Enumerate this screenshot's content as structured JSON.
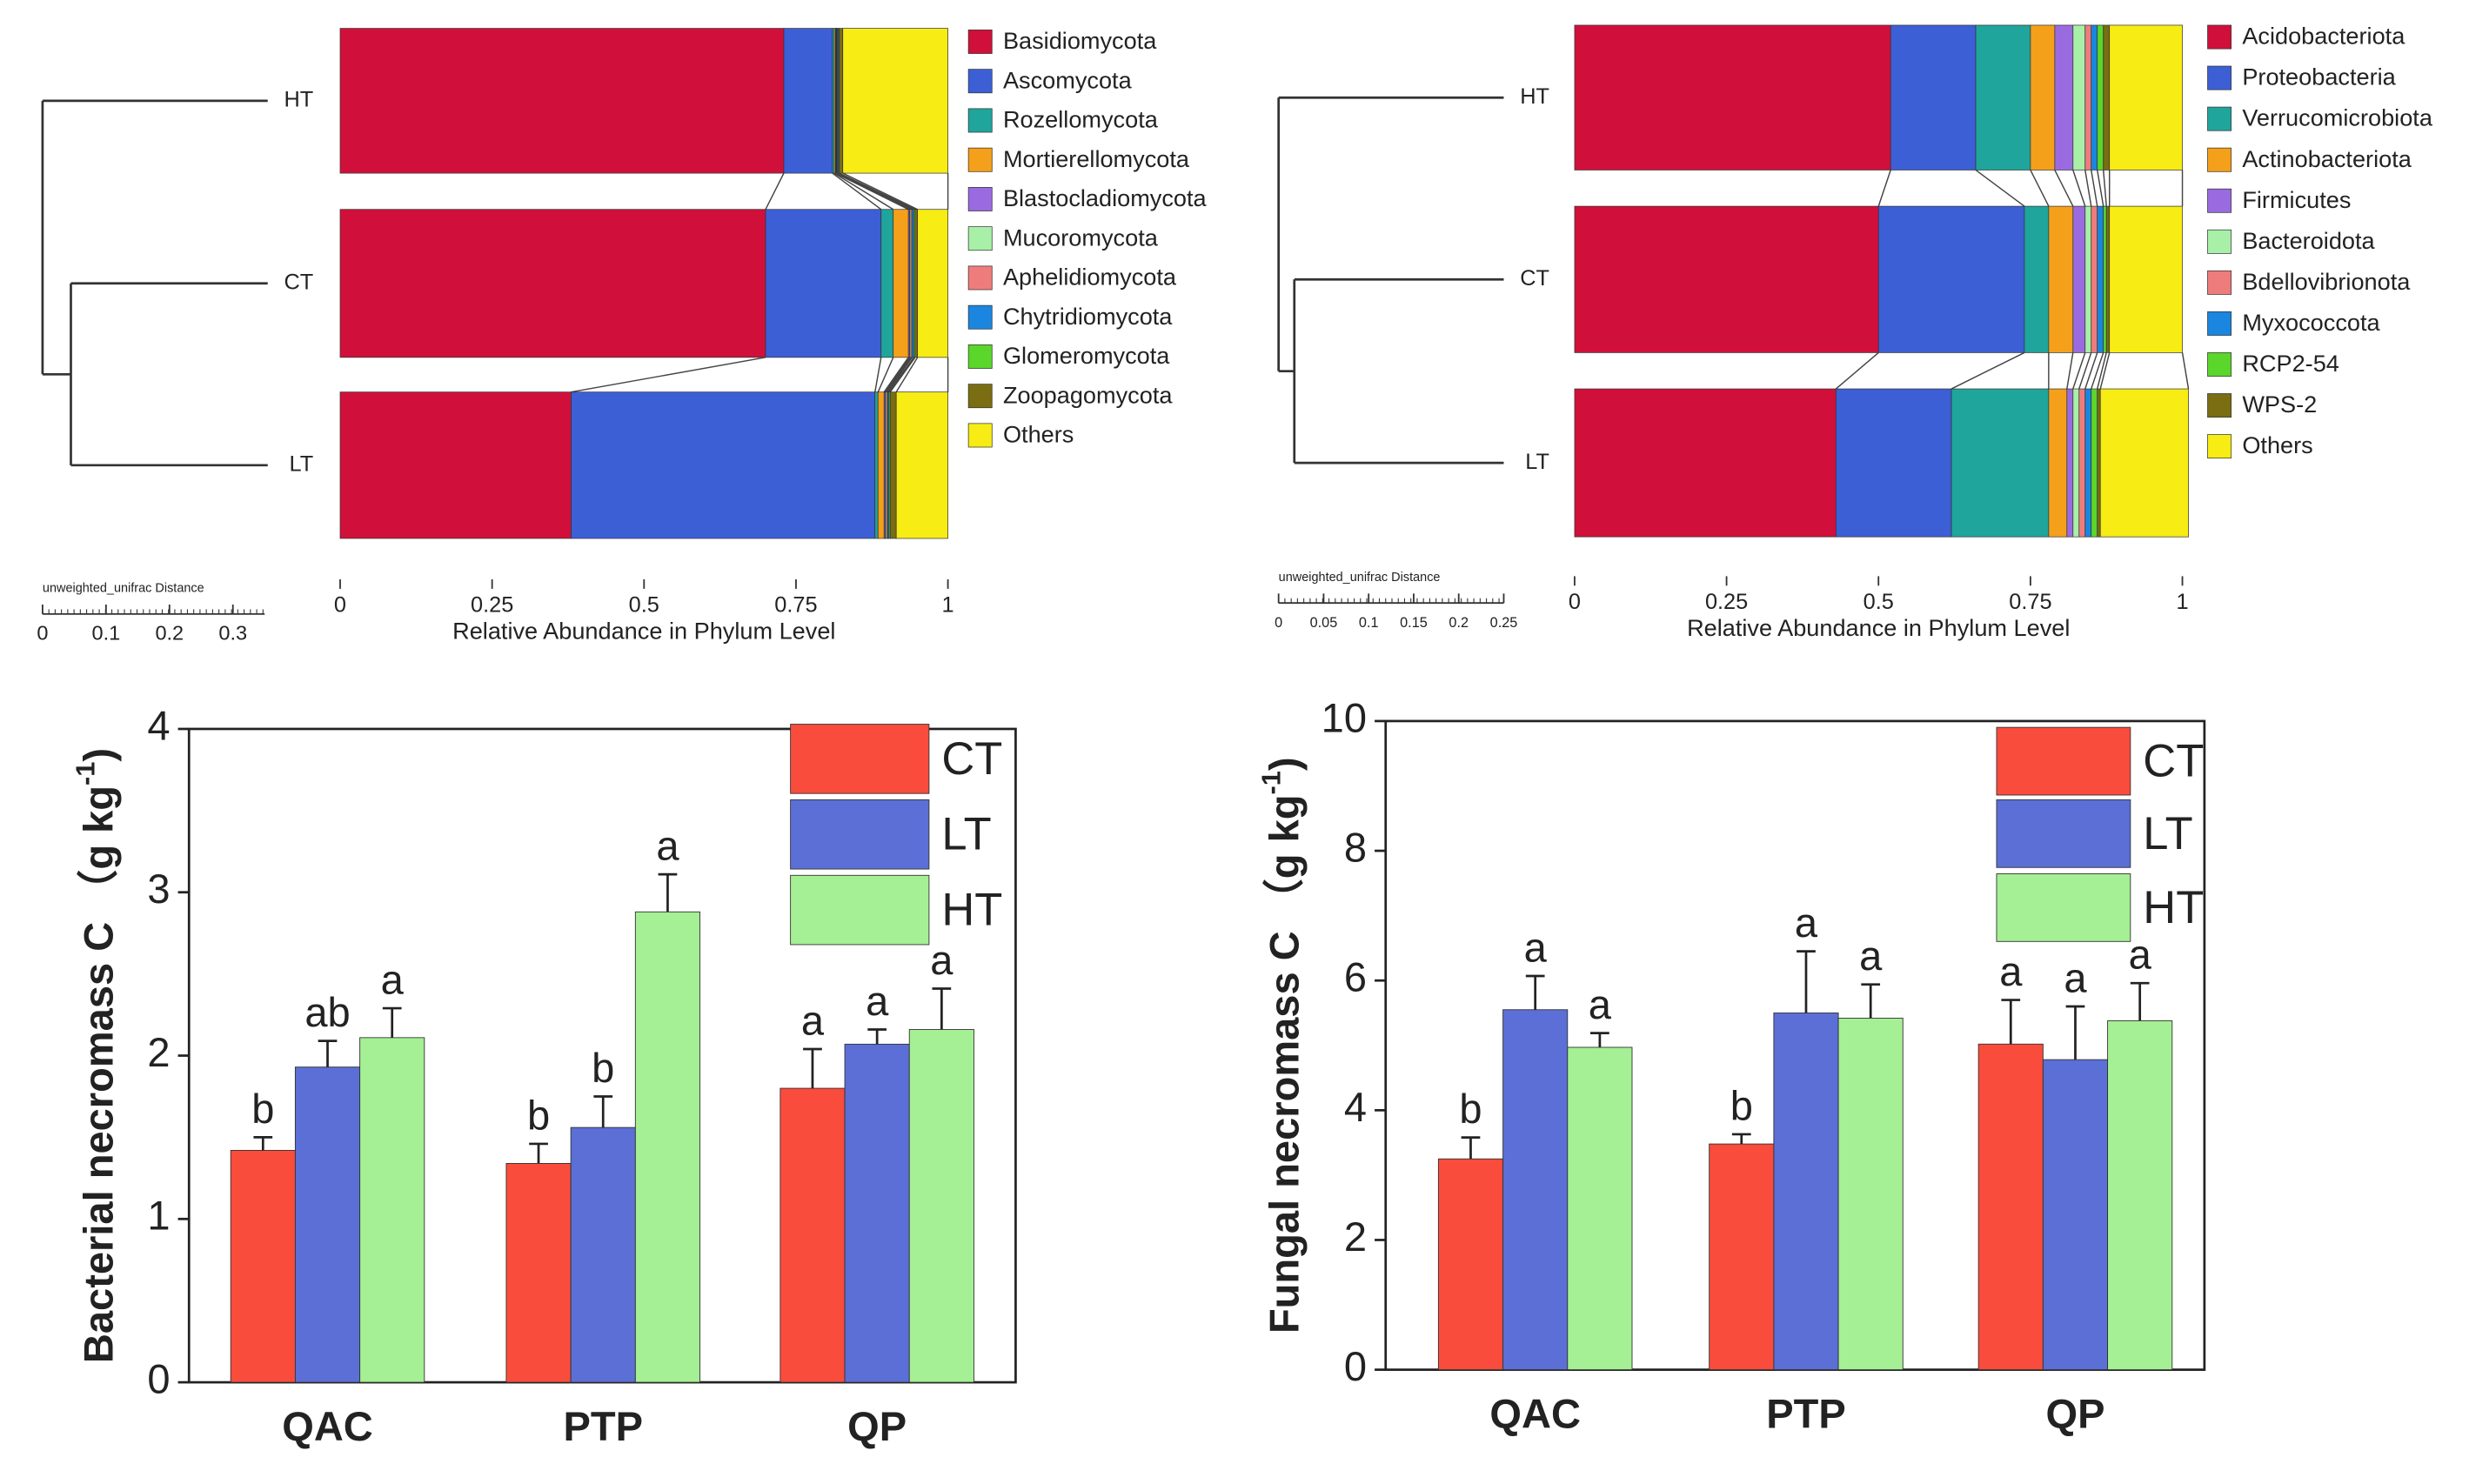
{
  "chart_data": [
    {
      "type": "stacked_bar",
      "orientation": "horizontal",
      "categories": [
        "HT",
        "CT",
        "LT"
      ],
      "xlim": [
        0,
        1
      ],
      "xticks": [
        0,
        0.25,
        0.5,
        0.75,
        1
      ],
      "xlabel": "Relative Abundance in Phylum Level",
      "dendrogram": {
        "label": "unweighted_unifrac Distance",
        "xlim": [
          0,
          0.35
        ],
        "xticks": [
          0,
          0.1,
          0.2,
          0.3
        ]
      },
      "series": [
        {
          "name": "Basidiomycota",
          "color": "#d0103a",
          "values": [
            0.73,
            0.7,
            0.38
          ]
        },
        {
          "name": "Ascomycota",
          "color": "#3c5fd6",
          "values": [
            0.08,
            0.19,
            0.5
          ]
        },
        {
          "name": "Rozellomycota",
          "color": "#1fa59c",
          "values": [
            0.003,
            0.02,
            0.005
          ]
        },
        {
          "name": "Mortierellomycota",
          "color": "#f5a01a",
          "values": [
            0.002,
            0.025,
            0.01
          ]
        },
        {
          "name": "Blastocladiomycota",
          "color": "#9a6be0",
          "values": [
            0.001,
            0.002,
            0.002
          ]
        },
        {
          "name": "Mucoromycota",
          "color": "#a8efa8",
          "values": [
            0.001,
            0.002,
            0.002
          ]
        },
        {
          "name": "Aphelidiomycota",
          "color": "#ef7c7c",
          "values": [
            0.001,
            0.002,
            0.002
          ]
        },
        {
          "name": "Chytridiomycota",
          "color": "#1a86e0",
          "values": [
            0.002,
            0.003,
            0.002
          ]
        },
        {
          "name": "Glomeromycota",
          "color": "#5bd62a",
          "values": [
            0.001,
            0.002,
            0.002
          ]
        },
        {
          "name": "Zoopagomycota",
          "color": "#7a6d12",
          "values": [
            0.006,
            0.004,
            0.01
          ]
        },
        {
          "name": "Others",
          "color": "#f7ec13",
          "values": [
            0.173,
            0.05,
            0.085
          ]
        }
      ]
    },
    {
      "type": "stacked_bar",
      "orientation": "horizontal",
      "categories": [
        "HT",
        "CT",
        "LT"
      ],
      "xlim": [
        0,
        1
      ],
      "xticks": [
        0,
        0.25,
        0.5,
        0.75,
        1
      ],
      "xlabel": "Relative Abundance in Phylum Level",
      "dendrogram": {
        "label": "unweighted_unifrac Distance",
        "xlim": [
          0,
          0.25
        ],
        "xticks": [
          0,
          0.05,
          0.1,
          0.15,
          0.2,
          0.25
        ]
      },
      "series": [
        {
          "name": "Acidobacteriota",
          "color": "#d0103a",
          "values": [
            0.52,
            0.5,
            0.43
          ]
        },
        {
          "name": "Proteobacteria",
          "color": "#3c5fd6",
          "values": [
            0.14,
            0.24,
            0.19
          ]
        },
        {
          "name": "Verrucomicrobiota",
          "color": "#1fa59c",
          "values": [
            0.09,
            0.04,
            0.16
          ]
        },
        {
          "name": "Actinobacteriota",
          "color": "#f5a01a",
          "values": [
            0.04,
            0.04,
            0.03
          ]
        },
        {
          "name": "Firmicutes",
          "color": "#9a6be0",
          "values": [
            0.03,
            0.02,
            0.01
          ]
        },
        {
          "name": "Bacteroidota",
          "color": "#a8efa8",
          "values": [
            0.02,
            0.01,
            0.01
          ]
        },
        {
          "name": "Bdellovibrionota",
          "color": "#ef7c7c",
          "values": [
            0.01,
            0.01,
            0.01
          ]
        },
        {
          "name": "Myxococcota",
          "color": "#1a86e0",
          "values": [
            0.01,
            0.01,
            0.01
          ]
        },
        {
          "name": "RCP2-54",
          "color": "#5bd62a",
          "values": [
            0.01,
            0.005,
            0.01
          ]
        },
        {
          "name": "WPS-2",
          "color": "#7a6d12",
          "values": [
            0.01,
            0.005,
            0.005
          ]
        },
        {
          "name": "Others",
          "color": "#f7ec13",
          "values": [
            0.12,
            0.12,
            0.145
          ]
        }
      ]
    },
    {
      "type": "bar",
      "ylabel": "Bacterial necromass C （g kg",
      "ylabel_sup": "-1",
      "ylabel_end": ")",
      "categories": [
        "QAC",
        "PTP",
        "QP"
      ],
      "ylim": [
        0,
        4
      ],
      "yticks": [
        0,
        1,
        2,
        3,
        4
      ],
      "series": [
        {
          "name": "CT",
          "color": "#f94c3c",
          "values": [
            1.42,
            1.34,
            1.8
          ],
          "errors": [
            0.08,
            0.12,
            0.24
          ],
          "letters": [
            "b",
            "b",
            "a"
          ]
        },
        {
          "name": "LT",
          "color": "#5b6fd6",
          "values": [
            1.93,
            1.56,
            2.07
          ],
          "errors": [
            0.16,
            0.19,
            0.09
          ],
          "letters": [
            "ab",
            "b",
            "a"
          ]
        },
        {
          "name": "HT",
          "color": "#a5ef94",
          "values": [
            2.11,
            2.88,
            2.16
          ],
          "errors": [
            0.18,
            0.23,
            0.25
          ],
          "letters": [
            "a",
            "a",
            "a"
          ]
        }
      ]
    },
    {
      "type": "bar",
      "ylabel": "Fungal necromass C （g kg",
      "ylabel_sup": "-1",
      "ylabel_end": ")",
      "categories": [
        "QAC",
        "PTP",
        "QP"
      ],
      "ylim": [
        0,
        10
      ],
      "yticks": [
        0,
        2,
        4,
        6,
        8,
        10
      ],
      "series": [
        {
          "name": "CT",
          "color": "#f94c3c",
          "values": [
            3.25,
            3.48,
            5.02
          ],
          "errors": [
            0.33,
            0.15,
            0.68
          ],
          "letters": [
            "b",
            "b",
            "a"
          ]
        },
        {
          "name": "LT",
          "color": "#5b6fd6",
          "values": [
            5.55,
            5.5,
            4.78
          ],
          "errors": [
            0.52,
            0.95,
            0.82
          ],
          "letters": [
            "a",
            "a",
            "a"
          ]
        },
        {
          "name": "HT",
          "color": "#a5ef94",
          "values": [
            4.97,
            5.42,
            5.38
          ],
          "errors": [
            0.22,
            0.52,
            0.58
          ],
          "letters": [
            "a",
            "a",
            "a"
          ]
        }
      ]
    }
  ]
}
